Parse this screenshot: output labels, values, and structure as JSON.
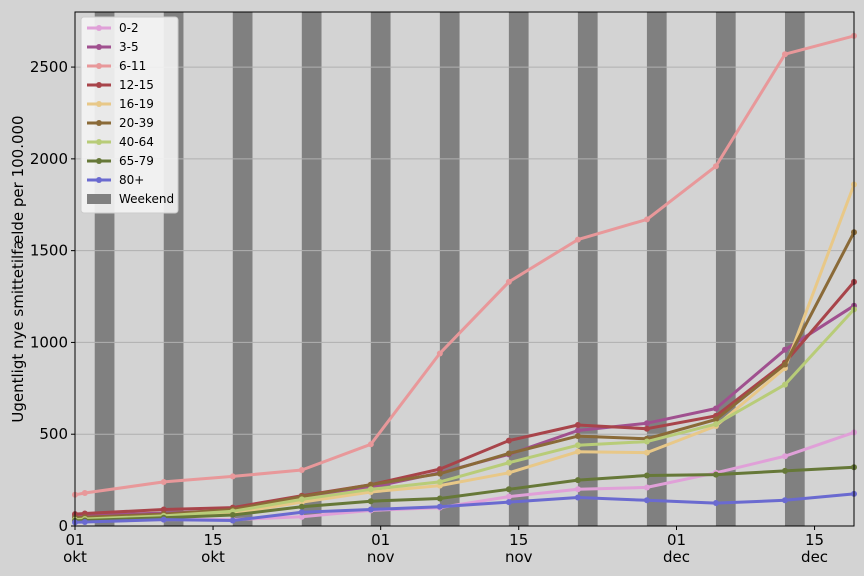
{
  "chart_data": {
    "type": "line",
    "ylabel": "Ugentligt nye smittetilfælde per 100.000",
    "xlabel": "",
    "x_range": [
      "2020-10-01",
      "2020-12-19"
    ],
    "ylim": [
      0,
      2800
    ],
    "y_ticks": [
      0,
      500,
      1000,
      1500,
      2000,
      2500
    ],
    "x_ticks": [
      {
        "date": "2020-10-01",
        "day": "01",
        "month": "okt"
      },
      {
        "date": "2020-10-15",
        "day": "15",
        "month": "okt"
      },
      {
        "date": "2020-11-01",
        "day": "01",
        "month": "nov"
      },
      {
        "date": "2020-11-15",
        "day": "15",
        "month": "nov"
      },
      {
        "date": "2020-12-01",
        "day": "01",
        "month": "dec"
      },
      {
        "date": "2020-12-15",
        "day": "15",
        "month": "dec"
      }
    ],
    "grid": "horizontal",
    "legend_position": "top-left",
    "x": [
      "2020-10-01",
      "2020-10-02",
      "2020-10-10",
      "2020-10-17",
      "2020-10-24",
      "2020-10-31",
      "2020-11-07",
      "2020-11-14",
      "2020-11-21",
      "2020-11-28",
      "2020-12-05",
      "2020-12-12",
      "2020-12-19"
    ],
    "series": [
      {
        "name": "0-2",
        "color": "#e0a0d8",
        "values": [
          35,
          38,
          35,
          35,
          50,
          85,
          100,
          160,
          200,
          210,
          290,
          380,
          510
        ]
      },
      {
        "name": "3-5",
        "color": "#a0508f",
        "values": [
          55,
          58,
          70,
          85,
          150,
          210,
          290,
          390,
          520,
          560,
          640,
          960,
          1200
        ]
      },
      {
        "name": "6-11",
        "color": "#e8989a",
        "values": [
          170,
          180,
          240,
          270,
          305,
          445,
          940,
          1330,
          1560,
          1670,
          1960,
          2570,
          2670
        ]
      },
      {
        "name": "12-15",
        "color": "#a8444a",
        "values": [
          65,
          68,
          90,
          100,
          165,
          225,
          310,
          465,
          550,
          530,
          600,
          890,
          1330
        ]
      },
      {
        "name": "16-19",
        "color": "#e8c888",
        "values": [
          30,
          32,
          45,
          70,
          130,
          185,
          220,
          290,
          405,
          400,
          545,
          860,
          1860
        ]
      },
      {
        "name": "20-39",
        "color": "#8a6a38",
        "values": [
          45,
          48,
          65,
          90,
          160,
          225,
          285,
          395,
          490,
          475,
          580,
          880,
          1600
        ]
      },
      {
        "name": "40-64",
        "color": "#b8cc78",
        "values": [
          35,
          38,
          55,
          80,
          145,
          200,
          240,
          345,
          440,
          460,
          555,
          770,
          1180
        ]
      },
      {
        "name": "65-79",
        "color": "#667838",
        "values": [
          28,
          30,
          45,
          60,
          105,
          135,
          150,
          200,
          250,
          275,
          280,
          300,
          320
        ]
      },
      {
        "name": "80+",
        "color": "#6a6ad0",
        "values": [
          20,
          22,
          35,
          30,
          75,
          90,
          105,
          130,
          155,
          140,
          125,
          140,
          175
        ]
      }
    ],
    "weekend_label": "Weekend",
    "weekend_color": "#808080",
    "weekend_starts": [
      "2020-10-03",
      "2020-10-10",
      "2020-10-17",
      "2020-10-24",
      "2020-10-31",
      "2020-11-07",
      "2020-11-14",
      "2020-11-21",
      "2020-11-28",
      "2020-12-05",
      "2020-12-12",
      "2020-12-19"
    ]
  }
}
